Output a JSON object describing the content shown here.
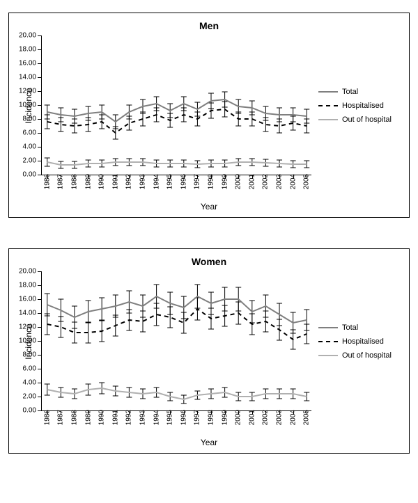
{
  "years": [
    1986,
    1987,
    1988,
    1989,
    1990,
    1991,
    1992,
    1993,
    1994,
    1995,
    1996,
    1997,
    1998,
    1999,
    2000,
    2001,
    2002,
    2003,
    2004,
    2005
  ],
  "axis_label_x": "Year",
  "axis_label_y": "Incidence",
  "legend": {
    "total": "Total",
    "hosp": "Hospitalised",
    "out": "Out of hospital"
  },
  "colors": {
    "total": "#7f7f7f",
    "hosp": "#000000",
    "out": "#b0b0b0",
    "axis": "#000000",
    "error": "#000000",
    "background": "#ffffff"
  },
  "line_width": 2,
  "dash_pattern": "6,5",
  "error_line_width": 1,
  "error_cap": 4,
  "title_fontsize": 14,
  "tick_fontsize": 10,
  "label_fontsize": 12,
  "panels": [
    {
      "id": "men",
      "title": "Men",
      "ylim": [
        0,
        20
      ],
      "ytick_step": 2,
      "y_decimals": 2,
      "series": {
        "total": {
          "y": [
            9.0,
            8.6,
            8.4,
            8.8,
            9.0,
            7.6,
            9.0,
            9.8,
            10.2,
            9.2,
            10.2,
            9.4,
            10.6,
            10.8,
            9.8,
            9.6,
            8.8,
            8.6,
            8.6,
            8.4
          ],
          "err": [
            1.0,
            1.0,
            1.0,
            1.0,
            1.0,
            1.0,
            1.0,
            1.0,
            1.0,
            1.0,
            1.0,
            1.0,
            1.1,
            1.1,
            1.0,
            1.0,
            1.0,
            1.0,
            1.0,
            1.0
          ]
        },
        "hosp": {
          "y": [
            7.6,
            7.2,
            7.0,
            7.2,
            7.6,
            6.0,
            7.4,
            8.0,
            8.6,
            7.8,
            8.6,
            8.0,
            9.2,
            9.4,
            8.0,
            8.0,
            7.2,
            7.0,
            7.4,
            7.0
          ],
          "err": [
            1.0,
            1.0,
            1.0,
            1.0,
            1.0,
            0.9,
            1.0,
            1.0,
            1.0,
            1.0,
            1.0,
            1.0,
            1.1,
            1.1,
            1.0,
            1.0,
            1.0,
            1.0,
            1.0,
            1.0
          ]
        },
        "out": {
          "y": [
            1.8,
            1.4,
            1.4,
            1.6,
            1.6,
            1.8,
            1.8,
            1.8,
            1.6,
            1.6,
            1.6,
            1.5,
            1.6,
            1.6,
            1.8,
            1.8,
            1.7,
            1.6,
            1.5,
            1.5
          ],
          "err": [
            0.6,
            0.5,
            0.5,
            0.5,
            0.5,
            0.5,
            0.5,
            0.5,
            0.5,
            0.5,
            0.5,
            0.5,
            0.5,
            0.5,
            0.5,
            0.5,
            0.5,
            0.5,
            0.5,
            0.5
          ]
        }
      }
    },
    {
      "id": "women",
      "title": "Women",
      "ylim": [
        0,
        20
      ],
      "ytick_step": 2,
      "y_decimals": 2,
      "series": {
        "total": {
          "y": [
            15.2,
            14.4,
            13.4,
            14.2,
            14.6,
            15.0,
            15.6,
            15.0,
            16.4,
            15.4,
            14.8,
            16.4,
            15.4,
            16.0,
            16.0,
            14.2,
            15.0,
            13.8,
            12.6,
            13.0
          ],
          "err": [
            1.6,
            1.6,
            1.6,
            1.6,
            1.6,
            1.6,
            1.6,
            1.6,
            1.7,
            1.6,
            1.6,
            1.7,
            1.6,
            1.7,
            1.7,
            1.6,
            1.6,
            1.6,
            1.5,
            1.5
          ]
        },
        "hosp": {
          "y": [
            12.4,
            12.0,
            11.2,
            11.2,
            11.4,
            12.2,
            13.0,
            12.8,
            13.8,
            13.4,
            12.6,
            14.6,
            13.2,
            13.6,
            14.0,
            12.4,
            12.8,
            11.6,
            10.2,
            11.0
          ],
          "err": [
            1.5,
            1.5,
            1.5,
            1.5,
            1.5,
            1.5,
            1.5,
            1.5,
            1.6,
            1.5,
            1.5,
            1.6,
            1.5,
            1.5,
            1.6,
            1.5,
            1.5,
            1.5,
            1.4,
            1.4
          ]
        },
        "out": {
          "y": [
            3.0,
            2.6,
            2.4,
            3.0,
            3.2,
            2.8,
            2.6,
            2.4,
            2.6,
            2.0,
            1.6,
            2.2,
            2.4,
            2.6,
            2.0,
            2.0,
            2.4,
            2.4,
            2.4,
            2.0
          ],
          "err": [
            0.8,
            0.7,
            0.7,
            0.8,
            0.8,
            0.7,
            0.7,
            0.7,
            0.7,
            0.6,
            0.6,
            0.6,
            0.7,
            0.7,
            0.6,
            0.6,
            0.7,
            0.7,
            0.7,
            0.6
          ]
        }
      }
    }
  ]
}
